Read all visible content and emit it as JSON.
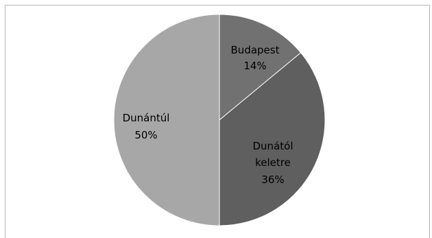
{
  "chart_data": {
    "type": "pie",
    "title": "",
    "slices": [
      {
        "label": "Budapest",
        "value": 14,
        "pct_label": "14%",
        "color": "#717171"
      },
      {
        "label": "Dunától keletre",
        "value": 36,
        "pct_label": "36%",
        "color": "#5f5f5f"
      },
      {
        "label": "Dunántúl",
        "value": 50,
        "pct_label": "50%",
        "color": "#a7a7a7"
      }
    ]
  }
}
